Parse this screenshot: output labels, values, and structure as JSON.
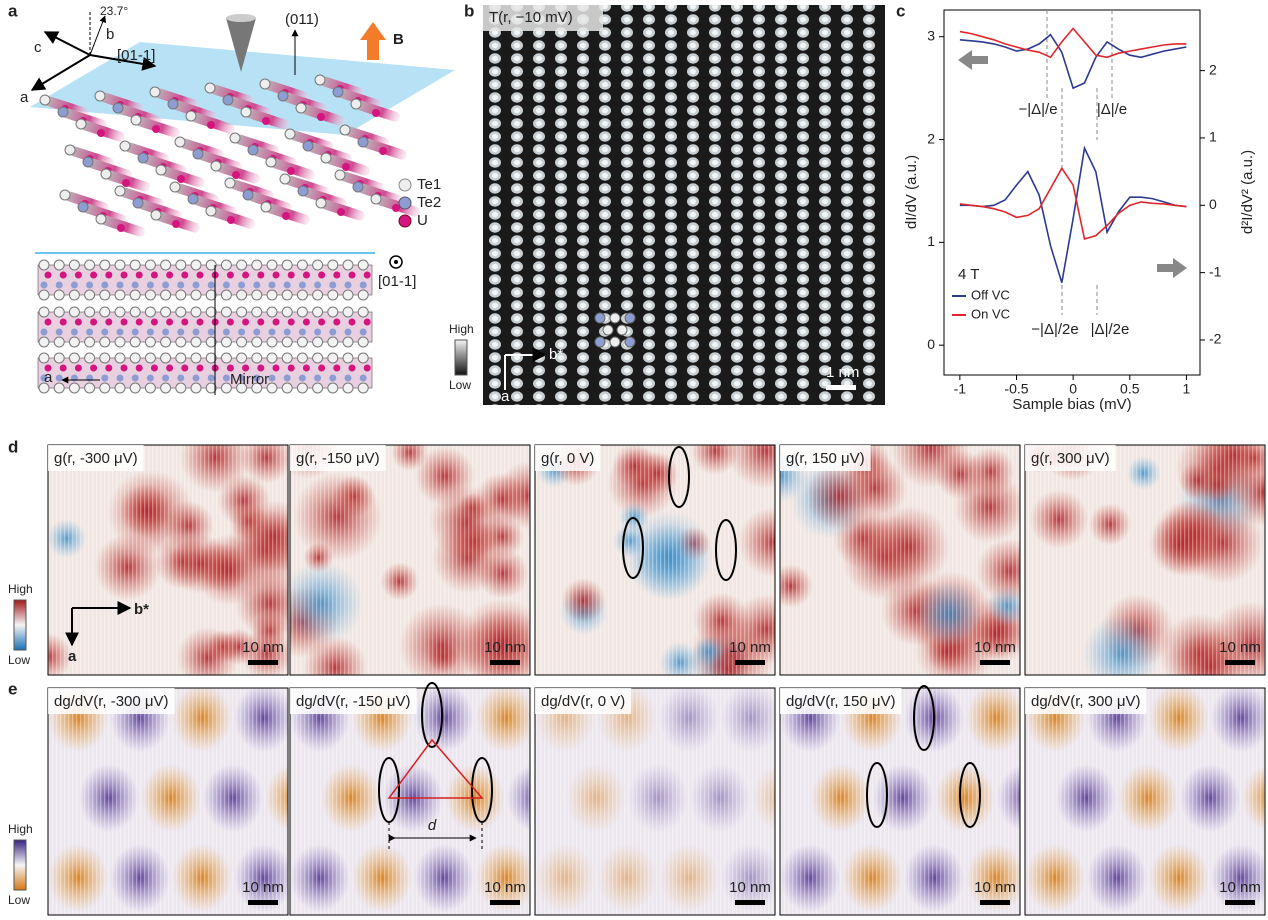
{
  "panel_a": {
    "letter": "a",
    "angle": "23.7°",
    "axis_b": "b",
    "axis_c": "c",
    "direction_top": "[01-1]",
    "axis_a_top": "a",
    "normal": "(011)",
    "field": "B",
    "legend": [
      "Te1",
      "Te2",
      "U"
    ],
    "direction_side": "[01-1]",
    "axis_a_bottom": "a",
    "mirror": "Mirror"
  },
  "panel_b": {
    "letter": "b",
    "title": "T(r, −10 mV)",
    "colorbar_high": "High",
    "colorbar_low": "Low",
    "axis_b": "b*",
    "axis_a": "a",
    "scale": "1 nm"
  },
  "panel_c": {
    "letter": "c"
  },
  "chart_data": {
    "type": "line",
    "x_label": "Sample bias (mV)",
    "y_label": "dI/dV (a.u.)",
    "y2_label": "d²I/dV² (a.u.)",
    "xlim": [
      -1.14,
      1.12
    ],
    "xticks": [
      -1,
      -0.5,
      0,
      0.5,
      1
    ],
    "ylim": [
      -0.29,
      3.26
    ],
    "yticks": [
      0,
      1,
      2,
      3
    ],
    "y2lim": [
      -2.52,
      2.9
    ],
    "y2ticks": [
      -2,
      -1,
      0,
      1,
      2
    ],
    "x": [
      -1,
      -0.9,
      -0.8,
      -0.7,
      -0.6,
      -0.5,
      -0.4,
      -0.3,
      -0.2,
      -0.1,
      0,
      0.1,
      0.2,
      0.3,
      0.4,
      0.5,
      0.6,
      0.7,
      0.8,
      0.9,
      1
    ],
    "series": [
      {
        "name": "Off VC",
        "color": "#2e3a8f",
        "values": [
          2.97,
          2.96,
          2.95,
          2.93,
          2.9,
          2.86,
          2.88,
          2.93,
          3.02,
          2.85,
          2.5,
          2.55,
          2.8,
          2.95,
          2.88,
          2.82,
          2.8,
          2.83,
          2.86,
          2.88,
          2.9
        ]
      },
      {
        "name": "On VC",
        "color": "#e0262b",
        "values": [
          3.05,
          3.03,
          3.0,
          2.97,
          2.93,
          2.9,
          2.87,
          2.85,
          2.8,
          2.95,
          3.08,
          2.95,
          2.82,
          2.8,
          2.84,
          2.86,
          2.88,
          2.9,
          2.92,
          2.93,
          2.93
        ]
      },
      {
        "color": "#2e3a8f",
        "axis": "y2",
        "values": [
          0,
          0,
          -0.02,
          0,
          0.08,
          0.3,
          0.5,
          0.15,
          -0.6,
          -1.15,
          -0.2,
          0.85,
          0.5,
          -0.4,
          -0.1,
          0.12,
          0.12,
          0.1,
          0.05,
          0.0,
          -0.02
        ]
      },
      {
        "color": "#e0262b",
        "axis": "y2",
        "values": [
          0.02,
          0.0,
          -0.02,
          -0.05,
          -0.1,
          -0.18,
          -0.15,
          -0.05,
          0.25,
          0.55,
          0.3,
          -0.5,
          -0.45,
          -0.3,
          -0.12,
          0,
          0.05,
          0.03,
          0.02,
          0.0,
          -0.02
        ]
      }
    ],
    "legend_title": "4 T",
    "annotations": [
      "−|Δ|/e",
      "|Δ|/e",
      "−|Δ|/2e",
      "|Δ|/2e"
    ]
  },
  "panel_d": {
    "letter": "d",
    "colorbar_high": "High",
    "colorbar_low": "Low",
    "axis_b": "b*",
    "axis_a": "a",
    "maps": [
      {
        "title": "g(r, -300 μV)",
        "scale": "10 nm"
      },
      {
        "title": "g(r, -150 μV)",
        "scale": "10 nm"
      },
      {
        "title": "g(r, 0 V)",
        "scale": "10 nm"
      },
      {
        "title": "g(r, 150 μV)",
        "scale": "10 nm"
      },
      {
        "title": "g(r, 300 μV)",
        "scale": "10 nm"
      }
    ]
  },
  "panel_e": {
    "letter": "e",
    "colorbar_high": "High",
    "colorbar_low": "Low",
    "distance": "d",
    "maps": [
      {
        "title": "dg/dV(r, -300 μV)",
        "scale": "10 nm"
      },
      {
        "title": "dg/dV(r, -150 μV)",
        "scale": "10 nm"
      },
      {
        "title": "dg/dV(r, 0 V)",
        "scale": "10 nm"
      },
      {
        "title": "dg/dV(r, 150 μV)",
        "scale": "10 nm"
      },
      {
        "title": "dg/dV(r, 300 μV)",
        "scale": "10 nm"
      }
    ]
  }
}
